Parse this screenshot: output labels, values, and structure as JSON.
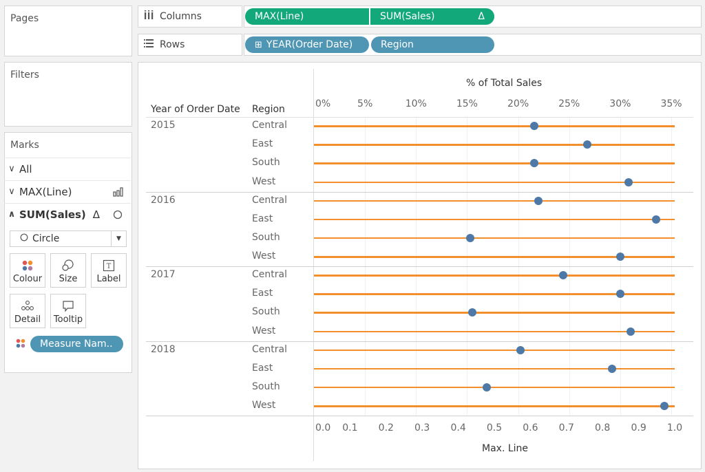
{
  "sidebar": {
    "pages_title": "Pages",
    "filters_title": "Filters",
    "marks_title": "Marks",
    "marks_rows": [
      {
        "chevron": "∨",
        "label": "All",
        "bold": false
      },
      {
        "chevron": "∨",
        "label": "MAX(Line)",
        "bold": false,
        "icon": "bar-chart-icon"
      },
      {
        "chevron": "∧",
        "label": "SUM(Sales)",
        "bold": true,
        "icon": "circle-icon",
        "delta": "Δ"
      }
    ],
    "mark_type": {
      "label": "Circle",
      "icon": "circle-outline-icon"
    },
    "mark_cards": [
      {
        "label": "Colour",
        "icon": "colour-dots-icon"
      },
      {
        "label": "Size",
        "icon": "size-icon"
      },
      {
        "label": "Label",
        "icon": "label-icon"
      },
      {
        "label": "Detail",
        "icon": "detail-dots-icon"
      },
      {
        "label": "Tooltip",
        "icon": "tooltip-icon"
      }
    ],
    "measure_pill": "Measure Nam.."
  },
  "shelves": {
    "columns_label": "Columns",
    "rows_label": "Rows",
    "columns_pills": [
      "MAX(Line)",
      "SUM(Sales)"
    ],
    "columns_delta": "Δ",
    "rows_pills": [
      "YEAR(Order Date)",
      "Region"
    ],
    "rows_plus": "⊞"
  },
  "colors": {
    "green_pill": "#12a879",
    "blue_pill": "#4f96b4",
    "line": "#f28e2b",
    "dot": "#4e79a7"
  },
  "chart_data": {
    "type": "scatter",
    "headers": {
      "year": "Year of Order Date",
      "region": "Region"
    },
    "top_axis_title": "% of Total Sales",
    "top_axis_ticks": [
      "0%",
      "5%",
      "10%",
      "15%",
      "20%",
      "25%",
      "30%",
      "35%"
    ],
    "top_axis_range": [
      0,
      35
    ],
    "bottom_axis_title": "Max. Line",
    "bottom_axis_ticks": [
      "0.0",
      "0.1",
      "0.2",
      "0.3",
      "0.4",
      "0.5",
      "0.6",
      "0.7",
      "0.8",
      "0.9",
      "1.0"
    ],
    "bottom_axis_range": [
      0,
      1
    ],
    "line_value": 1.0,
    "groups": [
      {
        "year": "2015",
        "rows": [
          {
            "region": "Central",
            "pct": 21.6
          },
          {
            "region": "East",
            "pct": 26.8
          },
          {
            "region": "South",
            "pct": 21.6
          },
          {
            "region": "West",
            "pct": 30.8
          }
        ]
      },
      {
        "year": "2016",
        "rows": [
          {
            "region": "Central",
            "pct": 22.0
          },
          {
            "region": "East",
            "pct": 33.5
          },
          {
            "region": "South",
            "pct": 15.3
          },
          {
            "region": "West",
            "pct": 30.0
          }
        ]
      },
      {
        "year": "2017",
        "rows": [
          {
            "region": "Central",
            "pct": 24.4
          },
          {
            "region": "East",
            "pct": 30.0
          },
          {
            "region": "South",
            "pct": 15.5
          },
          {
            "region": "West",
            "pct": 31.0
          }
        ]
      },
      {
        "year": "2018",
        "rows": [
          {
            "region": "Central",
            "pct": 20.2
          },
          {
            "region": "East",
            "pct": 29.2
          },
          {
            "region": "South",
            "pct": 16.9
          },
          {
            "region": "West",
            "pct": 34.3
          }
        ]
      }
    ]
  }
}
